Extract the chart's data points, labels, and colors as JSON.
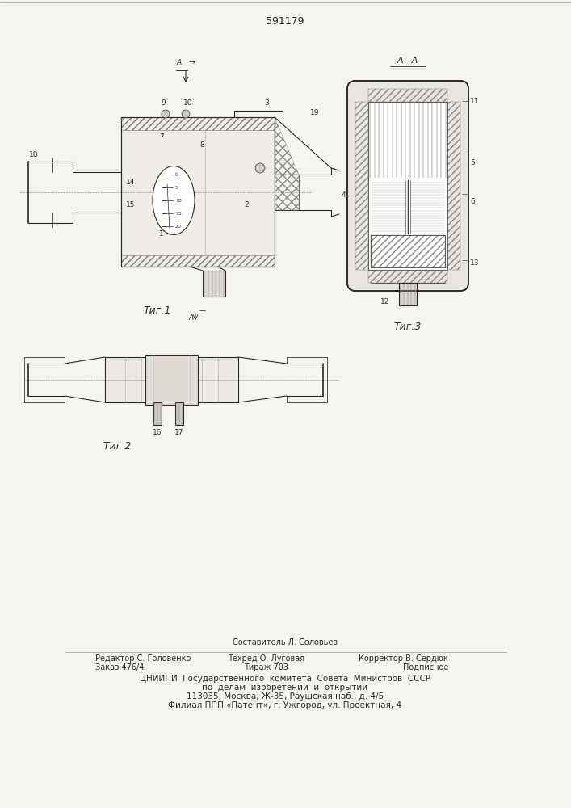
{
  "patent_number": "591179",
  "bg_color": "#f5f5f0",
  "line_color": "#2a2a2a",
  "fig1_caption": "Τиг.1",
  "fig2_caption": "Τиг 2",
  "fig3_caption": "Τиг.3",
  "section_label": "A - A",
  "footer_col1": [
    "Редактор С. Головенко",
    "Заказ 476/4"
  ],
  "footer_col2": [
    "Техред О. Луговая",
    "Тираж 703"
  ],
  "footer_col3": [
    "Корректор В. Сердюк",
    "Подписное"
  ],
  "footer_compose": "Составитель Л. Соловьев",
  "footer_org1": "ЦНИИПИ  Государственного  комитета  Совета  Министров  СССР",
  "footer_org2": "по  делам  изобретений  и  открытий",
  "footer_addr1": "113035, Москва, Ж-35, Раушская наб., д. 4/5",
  "footer_addr2": "Филиал ППП «Патент», г. Ужгород, ул. Проектная, 4"
}
